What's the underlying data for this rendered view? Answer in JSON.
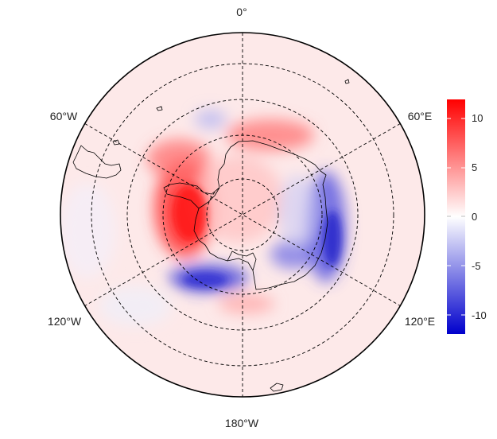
{
  "map": {
    "projection": "south-polar-stereographic",
    "longitude_labels": {
      "top": "0°",
      "upper_left": "60°W",
      "upper_right": "60°E",
      "lower_left": "120°W",
      "lower_right": "120°E",
      "bottom": "180°W"
    },
    "graticule": {
      "style": "dashed",
      "color": "#000000"
    },
    "coastline_color": "#000000"
  },
  "colorbar": {
    "ticks": [
      "10",
      "5",
      "0",
      "-5",
      "-10"
    ],
    "range": [
      -12,
      12
    ],
    "colors": {
      "high": "#ff0000",
      "mid": "#ffffff",
      "low": "#0000cc"
    }
  }
}
